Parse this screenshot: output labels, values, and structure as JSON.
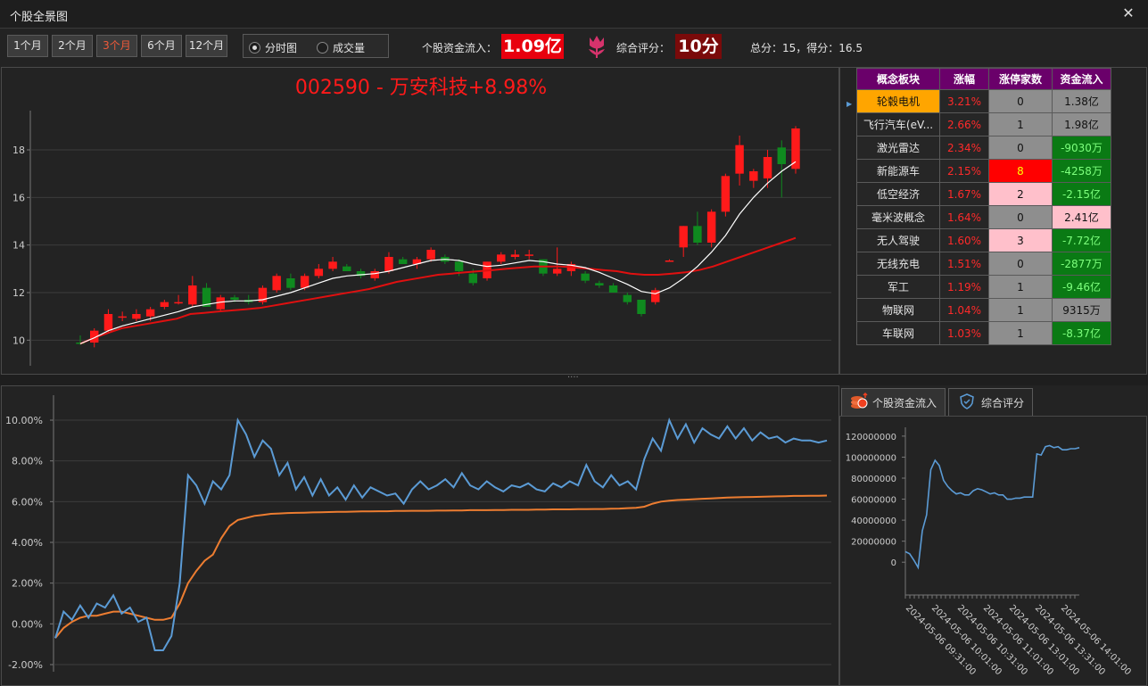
{
  "window": {
    "title": "个股全景图",
    "close_icon": "close-icon"
  },
  "periods": [
    {
      "label": "1个月",
      "active": false
    },
    {
      "label": "2个月",
      "active": false
    },
    {
      "label": "3个月",
      "active": true
    },
    {
      "label": "6个月",
      "active": false
    },
    {
      "label": "12个月",
      "active": false
    }
  ],
  "view_mode": {
    "options": [
      "分时图",
      "成交量"
    ],
    "selected": "分时图"
  },
  "header": {
    "flow_label": "个股资金流入：",
    "flow_value": "1.09亿",
    "score_icon": "tulip-icon",
    "score_label": "综合评分：",
    "score_value": "10分",
    "total_text": "总分：15，得分：16.5"
  },
  "colors": {
    "up": "#ff1a1a",
    "down": "#0f8a1f",
    "ma_short": "#ffffff",
    "ma_long": "#e01010",
    "blue": "#5b9bd5",
    "orange": "#ed7d31",
    "concept_header": "#6a006a"
  },
  "kline": {
    "title": "002590 - 万安科技+8.98%",
    "y_ticks": [
      "10",
      "12",
      "14",
      "16",
      "18"
    ],
    "ylim": [
      9.0,
      19.5
    ],
    "candles": [
      {
        "o": 9.9,
        "h": 10.2,
        "l": 9.8,
        "c": 9.85
      },
      {
        "o": 9.9,
        "h": 10.5,
        "l": 9.7,
        "c": 10.4
      },
      {
        "o": 10.4,
        "h": 11.3,
        "l": 10.3,
        "c": 11.1
      },
      {
        "o": 11.0,
        "h": 11.2,
        "l": 10.8,
        "c": 11.0
      },
      {
        "o": 10.9,
        "h": 11.3,
        "l": 10.8,
        "c": 11.1
      },
      {
        "o": 11.0,
        "h": 11.4,
        "l": 10.8,
        "c": 11.3
      },
      {
        "o": 11.4,
        "h": 11.7,
        "l": 11.3,
        "c": 11.6
      },
      {
        "o": 11.6,
        "h": 11.9,
        "l": 11.5,
        "c": 11.6
      },
      {
        "o": 11.5,
        "h": 12.7,
        "l": 11.4,
        "c": 12.3
      },
      {
        "o": 12.2,
        "h": 12.4,
        "l": 11.4,
        "c": 11.4
      },
      {
        "o": 11.3,
        "h": 11.9,
        "l": 11.2,
        "c": 11.8
      },
      {
        "o": 11.8,
        "h": 11.9,
        "l": 11.6,
        "c": 11.7
      },
      {
        "o": 11.7,
        "h": 11.9,
        "l": 11.5,
        "c": 11.6
      },
      {
        "o": 11.6,
        "h": 12.3,
        "l": 11.5,
        "c": 12.2
      },
      {
        "o": 12.1,
        "h": 12.8,
        "l": 12.0,
        "c": 12.7
      },
      {
        "o": 12.6,
        "h": 12.8,
        "l": 12.1,
        "c": 12.2
      },
      {
        "o": 12.2,
        "h": 12.8,
        "l": 12.1,
        "c": 12.7
      },
      {
        "o": 12.7,
        "h": 13.2,
        "l": 12.6,
        "c": 13.0
      },
      {
        "o": 13.0,
        "h": 13.5,
        "l": 12.9,
        "c": 13.3
      },
      {
        "o": 13.1,
        "h": 13.2,
        "l": 12.9,
        "c": 12.9
      },
      {
        "o": 12.9,
        "h": 13.0,
        "l": 12.6,
        "c": 12.7
      },
      {
        "o": 12.6,
        "h": 13.0,
        "l": 12.5,
        "c": 12.9
      },
      {
        "o": 12.9,
        "h": 13.7,
        "l": 12.8,
        "c": 13.5
      },
      {
        "o": 13.4,
        "h": 13.5,
        "l": 13.2,
        "c": 13.2
      },
      {
        "o": 13.2,
        "h": 13.5,
        "l": 13.0,
        "c": 13.4
      },
      {
        "o": 13.4,
        "h": 13.9,
        "l": 13.3,
        "c": 13.8
      },
      {
        "o": 13.5,
        "h": 13.6,
        "l": 13.2,
        "c": 13.3
      },
      {
        "o": 13.3,
        "h": 13.4,
        "l": 12.7,
        "c": 12.9
      },
      {
        "o": 12.8,
        "h": 13.0,
        "l": 12.3,
        "c": 12.4
      },
      {
        "o": 12.6,
        "h": 13.3,
        "l": 12.5,
        "c": 13.3
      },
      {
        "o": 13.3,
        "h": 13.7,
        "l": 13.2,
        "c": 13.6
      },
      {
        "o": 13.5,
        "h": 13.8,
        "l": 13.4,
        "c": 13.6
      },
      {
        "o": 13.6,
        "h": 13.8,
        "l": 13.4,
        "c": 13.6
      },
      {
        "o": 13.4,
        "h": 13.4,
        "l": 12.7,
        "c": 12.8
      },
      {
        "o": 12.8,
        "h": 13.9,
        "l": 12.7,
        "c": 13.0
      },
      {
        "o": 12.9,
        "h": 13.3,
        "l": 12.7,
        "c": 13.2
      },
      {
        "o": 12.8,
        "h": 12.9,
        "l": 12.4,
        "c": 12.5
      },
      {
        "o": 12.4,
        "h": 12.5,
        "l": 12.2,
        "c": 12.3
      },
      {
        "o": 12.3,
        "h": 12.4,
        "l": 12.0,
        "c": 12.0
      },
      {
        "o": 11.9,
        "h": 12.0,
        "l": 11.5,
        "c": 11.6
      },
      {
        "o": 11.7,
        "h": 11.7,
        "l": 11.0,
        "c": 11.1
      },
      {
        "o": 11.6,
        "h": 12.2,
        "l": 11.5,
        "c": 12.1
      },
      {
        "o": 13.3,
        "h": 13.4,
        "l": 13.3,
        "c": 13.35
      },
      {
        "o": 13.9,
        "h": 14.8,
        "l": 13.5,
        "c": 14.8
      },
      {
        "o": 14.8,
        "h": 15.4,
        "l": 14.0,
        "c": 14.1
      },
      {
        "o": 14.1,
        "h": 15.5,
        "l": 13.9,
        "c": 15.4
      },
      {
        "o": 15.4,
        "h": 17.0,
        "l": 15.2,
        "c": 16.9
      },
      {
        "o": 17.0,
        "h": 18.6,
        "l": 16.5,
        "c": 18.2
      },
      {
        "o": 16.7,
        "h": 17.2,
        "l": 16.4,
        "c": 17.1
      },
      {
        "o": 16.8,
        "h": 18.0,
        "l": 16.4,
        "c": 17.7
      },
      {
        "o": 18.1,
        "h": 18.4,
        "l": 16.0,
        "c": 17.4
      },
      {
        "o": 17.2,
        "h": 19.0,
        "l": 17.0,
        "c": 18.9
      }
    ],
    "ma_short": [
      9.85,
      10.1,
      10.4,
      10.6,
      10.75,
      10.9,
      11.05,
      11.2,
      11.4,
      11.5,
      11.6,
      11.65,
      11.65,
      11.7,
      11.85,
      12.0,
      12.2,
      12.4,
      12.6,
      12.7,
      12.75,
      12.8,
      12.9,
      13.05,
      13.2,
      13.35,
      13.4,
      13.35,
      13.2,
      13.1,
      13.15,
      13.25,
      13.35,
      13.3,
      13.2,
      13.15,
      13.05,
      12.85,
      12.6,
      12.35,
      12.05,
      11.95,
      12.2,
      12.6,
      13.1,
      13.7,
      14.4,
      15.3,
      16.0,
      16.6,
      17.1,
      17.5
    ],
    "ma_long": [
      9.85,
      10.1,
      10.3,
      10.5,
      10.6,
      10.7,
      10.8,
      10.9,
      11.1,
      11.15,
      11.2,
      11.25,
      11.3,
      11.35,
      11.45,
      11.55,
      11.65,
      11.75,
      11.85,
      11.95,
      12.05,
      12.15,
      12.3,
      12.45,
      12.55,
      12.65,
      12.75,
      12.8,
      12.85,
      12.9,
      12.95,
      13.0,
      13.05,
      13.1,
      13.1,
      13.1,
      13.05,
      13.0,
      12.95,
      12.9,
      12.8,
      12.75,
      12.75,
      12.8,
      12.85,
      12.95,
      13.1,
      13.3,
      13.5,
      13.7,
      13.9,
      14.1,
      14.3
    ]
  },
  "concept_table": {
    "headers": [
      "概念板块",
      "涨幅",
      "涨停家数",
      "资金流入"
    ],
    "rows": [
      {
        "name": "轮毂电机",
        "change": "3.21%",
        "limit_up": "0",
        "flow": "1.38亿",
        "selected": true,
        "limit_bg": "#8e8e8e",
        "limit_fg": "#111111",
        "flow_bg": "#8e8e8e",
        "flow_fg": "#111111"
      },
      {
        "name": "飞行汽车(eV...",
        "change": "2.66%",
        "limit_up": "1",
        "flow": "1.98亿",
        "selected": false,
        "limit_bg": "#8e8e8e",
        "limit_fg": "#111111",
        "flow_bg": "#8e8e8e",
        "flow_fg": "#111111"
      },
      {
        "name": "激光雷达",
        "change": "2.34%",
        "limit_up": "0",
        "flow": "-9030万",
        "selected": false,
        "limit_bg": "#8e8e8e",
        "limit_fg": "#111111",
        "flow_bg": "#0a7a14",
        "flow_fg": "#7dff7d"
      },
      {
        "name": "新能源车",
        "change": "2.15%",
        "limit_up": "8",
        "flow": "-4258万",
        "selected": false,
        "limit_bg": "#ff0000",
        "limit_fg": "#ffff00",
        "flow_bg": "#0a7a14",
        "flow_fg": "#7dff7d"
      },
      {
        "name": "低空经济",
        "change": "1.67%",
        "limit_up": "2",
        "flow": "-2.15亿",
        "selected": false,
        "limit_bg": "#ffc0cb",
        "limit_fg": "#111111",
        "flow_bg": "#0a7a14",
        "flow_fg": "#7dff7d"
      },
      {
        "name": "毫米波概念",
        "change": "1.64%",
        "limit_up": "0",
        "flow": "2.41亿",
        "selected": false,
        "limit_bg": "#8e8e8e",
        "limit_fg": "#111111",
        "flow_bg": "#ffc0cb",
        "flow_fg": "#111111"
      },
      {
        "name": "无人驾驶",
        "change": "1.60%",
        "limit_up": "3",
        "flow": "-7.72亿",
        "selected": false,
        "limit_bg": "#ffc0cb",
        "limit_fg": "#111111",
        "flow_bg": "#0a7a14",
        "flow_fg": "#7dff7d"
      },
      {
        "name": "无线充电",
        "change": "1.51%",
        "limit_up": "0",
        "flow": "-2877万",
        "selected": false,
        "limit_bg": "#8e8e8e",
        "limit_fg": "#111111",
        "flow_bg": "#0a7a14",
        "flow_fg": "#7dff7d"
      },
      {
        "name": "军工",
        "change": "1.19%",
        "limit_up": "1",
        "flow": "-9.46亿",
        "selected": false,
        "limit_bg": "#8e8e8e",
        "limit_fg": "#111111",
        "flow_bg": "#0a7a14",
        "flow_fg": "#7dff7d"
      },
      {
        "name": "物联网",
        "change": "1.04%",
        "limit_up": "1",
        "flow": "9315万",
        "selected": false,
        "limit_bg": "#8e8e8e",
        "limit_fg": "#111111",
        "flow_bg": "#8e8e8e",
        "flow_fg": "#111111"
      },
      {
        "name": "车联网",
        "change": "1.03%",
        "limit_up": "1",
        "flow": "-8.37亿",
        "selected": false,
        "limit_bg": "#8e8e8e",
        "limit_fg": "#111111",
        "flow_bg": "#0a7a14",
        "flow_fg": "#7dff7d"
      }
    ]
  },
  "splitter": {
    "grip": "····"
  },
  "intraday": {
    "y_ticks": [
      "10.00%",
      "8.00%",
      "6.00%",
      "4.00%",
      "2.00%",
      "0.00%",
      "-2.00%"
    ],
    "ylim": [
      -2.0,
      10.0
    ],
    "price_pct": [
      -0.7,
      0.6,
      0.2,
      0.9,
      0.3,
      1.0,
      0.8,
      1.4,
      0.5,
      0.8,
      0.1,
      0.3,
      -1.3,
      -1.3,
      -0.6,
      2.0,
      7.3,
      6.8,
      5.9,
      7.0,
      6.6,
      7.3,
      10.0,
      9.3,
      8.2,
      9.0,
      8.6,
      7.3,
      7.9,
      6.6,
      7.2,
      6.3,
      7.1,
      6.3,
      6.7,
      6.1,
      6.8,
      6.2,
      6.7,
      6.5,
      6.3,
      6.4,
      5.9,
      6.6,
      7.0,
      6.6,
      6.8,
      7.1,
      6.7,
      7.4,
      6.8,
      6.6,
      7.0,
      6.7,
      6.5,
      6.8,
      6.7,
      6.9,
      6.6,
      6.5,
      6.9,
      6.7,
      7.0,
      6.8,
      7.8,
      7.0,
      6.7,
      7.3,
      6.8,
      7.0,
      6.6,
      8.1,
      9.1,
      8.5,
      10.0,
      9.1,
      9.8,
      8.9,
      9.6,
      9.3,
      9.1,
      9.7,
      9.1,
      9.6,
      9.0,
      9.4,
      9.1,
      9.2,
      8.9,
      9.1,
      9.0,
      9.0,
      8.9,
      9.0
    ],
    "avg_pct": [
      -0.7,
      -0.2,
      0.1,
      0.3,
      0.4,
      0.4,
      0.5,
      0.6,
      0.6,
      0.5,
      0.4,
      0.3,
      0.2,
      0.2,
      0.3,
      1.0,
      2.0,
      2.6,
      3.1,
      3.4,
      4.2,
      4.8,
      5.1,
      5.2,
      5.3,
      5.35,
      5.4,
      5.42,
      5.44,
      5.45,
      5.46,
      5.47,
      5.48,
      5.49,
      5.5,
      5.5,
      5.51,
      5.52,
      5.52,
      5.53,
      5.53,
      5.54,
      5.54,
      5.55,
      5.55,
      5.55,
      5.56,
      5.56,
      5.57,
      5.57,
      5.58,
      5.58,
      5.58,
      5.59,
      5.59,
      5.6,
      5.6,
      5.6,
      5.61,
      5.61,
      5.62,
      5.62,
      5.62,
      5.63,
      5.63,
      5.64,
      5.64,
      5.65,
      5.66,
      5.68,
      5.7,
      5.75,
      5.9,
      6.0,
      6.05,
      6.08,
      6.1,
      6.12,
      6.14,
      6.16,
      6.18,
      6.2,
      6.21,
      6.22,
      6.23,
      6.24,
      6.25,
      6.26,
      6.27,
      6.28,
      6.28,
      6.29,
      6.29,
      6.3
    ]
  },
  "tabs": [
    {
      "label": "个股资金流入",
      "icon": "coin-stack-icon",
      "active": true
    },
    {
      "label": "综合评分",
      "icon": "shield-icon",
      "active": false
    }
  ],
  "flow_chart": {
    "y_ticks": [
      "120000000",
      "100000000",
      "80000000",
      "60000000",
      "40000000",
      "20000000",
      "0"
    ],
    "ylim": [
      -10000000,
      125000000
    ],
    "x_ticks": [
      "2024-05-06 09:31:00",
      "2024-05-06 10:01:00",
      "2024-05-06 10:31:00",
      "2024-05-06 11:01:00",
      "2024-05-06 13:01:00",
      "2024-05-06 13:31:00",
      "2024-05-06 14:01:00"
    ],
    "values": [
      10000000,
      8000000,
      2000000,
      -5000000,
      30000000,
      45000000,
      88000000,
      97000000,
      92000000,
      78000000,
      72000000,
      68000000,
      65000000,
      66000000,
      64000000,
      64000000,
      68000000,
      70000000,
      69000000,
      67000000,
      65000000,
      66000000,
      64000000,
      64000000,
      60000000,
      60000000,
      61000000,
      61000000,
      62000000,
      62000000,
      62000000,
      103000000,
      102000000,
      110000000,
      111000000,
      109000000,
      110000000,
      107000000,
      107000000,
      108000000,
      108000000,
      109000000
    ]
  }
}
